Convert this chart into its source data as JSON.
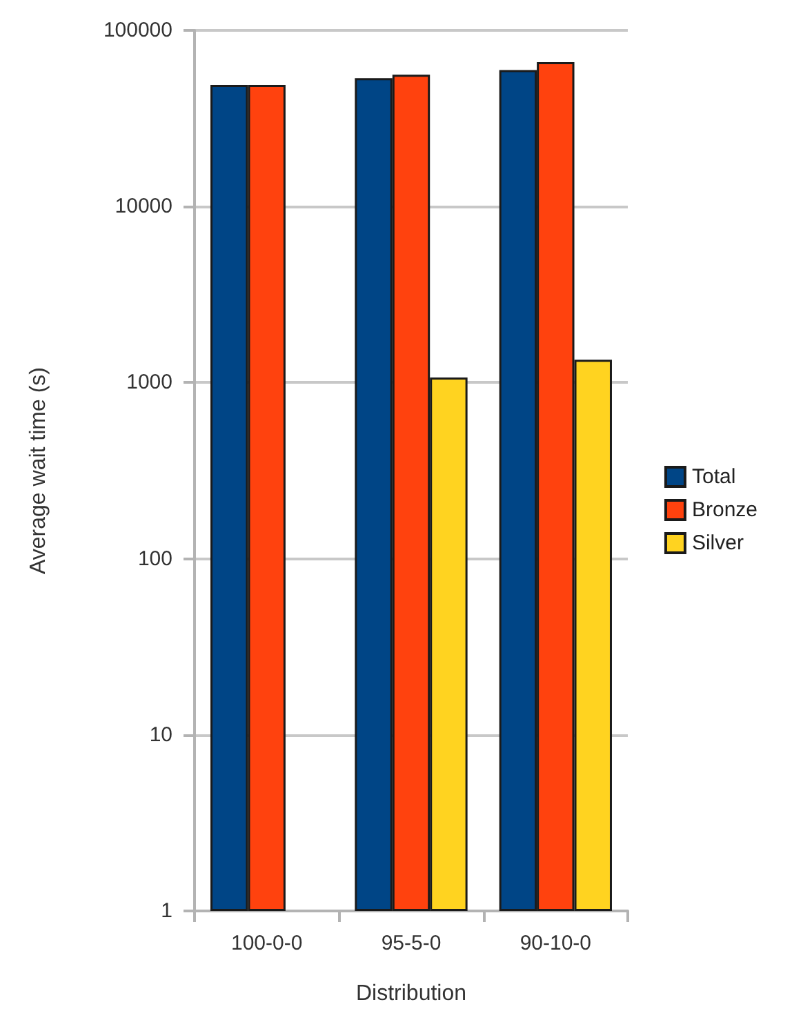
{
  "chart_data": {
    "type": "bar",
    "xlabel": "Distribution",
    "ylabel": "Average wait time (s)",
    "categories": [
      "100-0-0",
      "95-5-0",
      "90-10-0"
    ],
    "series": [
      {
        "name": "Total",
        "color": "#004586",
        "values": [
          49000,
          53500,
          59500
        ]
      },
      {
        "name": "Bronze",
        "color": "#ff420e",
        "values": [
          49000,
          56000,
          66000
        ]
      },
      {
        "name": "Silver",
        "color": "#ffd320",
        "values": [
          null,
          1070,
          1350
        ]
      }
    ],
    "log": "y",
    "ylim": [
      1,
      100000
    ],
    "yticks": [
      1,
      10,
      100,
      1000,
      10000,
      100000
    ],
    "grid": "y",
    "legend": "right"
  }
}
